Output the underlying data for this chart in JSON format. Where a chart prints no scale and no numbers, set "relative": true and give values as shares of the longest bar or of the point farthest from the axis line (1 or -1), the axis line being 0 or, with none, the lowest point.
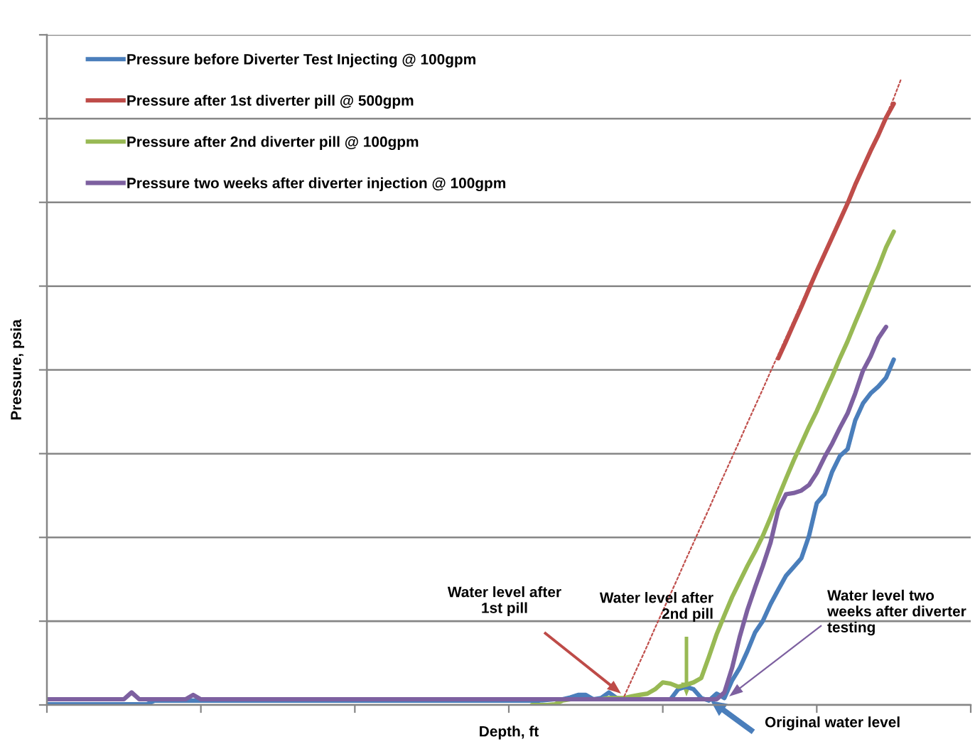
{
  "chart_data": {
    "type": "line",
    "relative": true,
    "xlabel": "Depth, ft",
    "ylabel": "Pressure, psia",
    "grid": "y",
    "legend": "top left",
    "categories": [
      null,
      null,
      null,
      null,
      null,
      null,
      null,
      null,
      null,
      null,
      null,
      null,
      null,
      null,
      null,
      null,
      null,
      null,
      null,
      null,
      null,
      null,
      null,
      null,
      null,
      null,
      null,
      null,
      null,
      null,
      null,
      null,
      null,
      null,
      null,
      null,
      null,
      null,
      null,
      null,
      null,
      null,
      null,
      null,
      null,
      null,
      null,
      null,
      null,
      null,
      null,
      null,
      null,
      null,
      null,
      null,
      null,
      null,
      null,
      null,
      null,
      null,
      null,
      null,
      null,
      null,
      null,
      null,
      null,
      null,
      null,
      null,
      null,
      null,
      null,
      null,
      null,
      null,
      null,
      null,
      null,
      null,
      null,
      null,
      null,
      null,
      null,
      null,
      null,
      null,
      null,
      null,
      null,
      null,
      null,
      null,
      null,
      null,
      null,
      null,
      null,
      null,
      null,
      null,
      null,
      null,
      null,
      null,
      null,
      null,
      null,
      null,
      null,
      null,
      null,
      null,
      null,
      null,
      null,
      null,
      null
    ],
    "series": [
      {
        "name": "Pressure before Diverter Test Injecting @ 100gpm",
        "color": "#4a7ebb",
        "values": [
          0.001,
          0.001,
          0.001,
          0.001,
          0.001,
          0.001,
          0.001,
          0.001,
          0.001,
          0.001,
          0.001,
          0.001,
          0.001,
          0.001,
          0.007,
          0.007,
          0.007,
          0.007,
          0.007,
          0.007,
          0.007,
          0.007,
          0.007,
          0.007,
          0.007,
          0.007,
          0.007,
          0.007,
          0.007,
          0.007,
          0.007,
          0.007,
          0.007,
          0.007,
          0.007,
          0.007,
          0.007,
          0.007,
          0.007,
          0.007,
          0.007,
          0.007,
          0.007,
          0.007,
          0.007,
          0.007,
          0.007,
          0.007,
          0.007,
          0.007,
          0.007,
          0.007,
          0.007,
          0.007,
          0.007,
          0.007,
          0.007,
          0.007,
          0.007,
          0.007,
          0.007,
          0.007,
          0.007,
          0.007,
          0.007,
          0.008,
          0.009,
          0.009,
          0.012,
          0.016,
          0.016,
          0.009,
          0.011,
          0.02,
          0.011,
          0.009,
          0.009,
          0.009,
          0.009,
          0.009,
          0.009,
          0.009,
          0.025,
          0.029,
          0.025,
          0.011,
          0.007,
          0.018,
          0.011,
          0.039,
          0.059,
          0.086,
          0.116,
          0.134,
          0.161,
          0.184,
          0.206,
          0.22,
          0.234,
          0.27,
          0.322,
          0.336,
          0.372,
          0.397,
          0.408,
          0.454,
          0.481,
          0.497,
          0.508,
          0.522,
          0.551,
          null,
          null,
          null,
          null,
          null,
          null,
          null,
          null,
          null,
          null
        ]
      },
      {
        "name": "Pressure after 1st diverter pill @ 500gpm",
        "color": "#be4b48",
        "values": [
          null,
          null,
          null,
          null,
          null,
          null,
          null,
          null,
          null,
          null,
          null,
          null,
          null,
          null,
          null,
          null,
          null,
          null,
          null,
          null,
          null,
          null,
          null,
          null,
          null,
          null,
          null,
          null,
          null,
          null,
          null,
          null,
          null,
          null,
          null,
          null,
          null,
          null,
          null,
          null,
          null,
          null,
          null,
          null,
          null,
          null,
          null,
          null,
          null,
          null,
          null,
          null,
          null,
          null,
          null,
          null,
          null,
          null,
          null,
          null,
          null,
          null,
          null,
          null,
          null,
          null,
          null,
          null,
          null,
          null,
          null,
          null,
          null,
          null,
          null,
          null,
          null,
          null,
          null,
          null,
          null,
          null,
          null,
          null,
          null,
          null,
          null,
          null,
          null,
          null,
          null,
          null,
          null,
          null,
          null,
          0.553,
          0.58,
          0.608,
          0.635,
          0.664,
          0.692,
          0.719,
          0.746,
          0.773,
          0.8,
          0.83,
          0.857,
          0.884,
          0.909,
          0.937,
          0.959,
          null,
          null,
          null,
          null,
          null,
          null,
          null,
          null,
          null,
          null
        ]
      },
      {
        "name": "Pressure after 2nd diverter pill @ 100gpm",
        "color": "#98b954",
        "values": [
          null,
          null,
          null,
          null,
          null,
          null,
          null,
          null,
          null,
          null,
          null,
          null,
          null,
          null,
          null,
          null,
          null,
          null,
          null,
          null,
          null,
          null,
          null,
          null,
          null,
          null,
          null,
          null,
          null,
          null,
          null,
          null,
          null,
          null,
          null,
          null,
          null,
          null,
          null,
          null,
          null,
          null,
          null,
          null,
          null,
          null,
          null,
          null,
          null,
          null,
          null,
          null,
          null,
          null,
          null,
          null,
          null,
          null,
          null,
          null,
          null,
          null,
          null,
          0,
          0,
          0,
          0.001,
          0.007,
          0.009,
          0.009,
          0.009,
          0.009,
          0.009,
          0.011,
          0.011,
          0.011,
          0.014,
          0.016,
          0.018,
          0.025,
          0.036,
          0.034,
          0.029,
          0.032,
          0.036,
          0.043,
          0.077,
          0.113,
          0.143,
          0.172,
          0.197,
          0.222,
          0.245,
          0.27,
          0.299,
          0.331,
          0.361,
          0.39,
          0.417,
          0.444,
          0.469,
          0.497,
          0.524,
          0.553,
          0.58,
          0.61,
          0.639,
          0.669,
          0.698,
          0.73,
          0.755,
          null,
          null,
          null,
          null,
          null,
          null,
          null,
          null,
          null,
          null
        ]
      },
      {
        "name": "Pressure two weeks after diverter injection @ 100gpm",
        "color": "#7d60a0",
        "values": [
          0.009,
          0.009,
          0.009,
          0.009,
          0.009,
          0.009,
          0.009,
          0.009,
          0.009,
          0.009,
          0.009,
          0.02,
          0.009,
          0.009,
          0.009,
          0.009,
          0.009,
          0.009,
          0.009,
          0.016,
          0.009,
          0.009,
          0.009,
          0.009,
          0.009,
          0.009,
          0.009,
          0.009,
          0.009,
          0.009,
          0.009,
          0.009,
          0.009,
          0.009,
          0.009,
          0.009,
          0.009,
          0.009,
          0.009,
          0.009,
          0.009,
          0.009,
          0.009,
          0.009,
          0.009,
          0.009,
          0.009,
          0.009,
          0.009,
          0.009,
          0.009,
          0.009,
          0.009,
          0.009,
          0.009,
          0.009,
          0.009,
          0.009,
          0.009,
          0.009,
          0.009,
          0.009,
          0.009,
          0.009,
          0.009,
          0.009,
          0.009,
          0.009,
          0.009,
          0.009,
          0.009,
          0.009,
          0.009,
          0.009,
          0.009,
          0.009,
          0.009,
          0.009,
          0.009,
          0.009,
          0.009,
          0.009,
          0.009,
          0.009,
          0.009,
          0.009,
          0.009,
          0.009,
          0.02,
          0.059,
          0.109,
          0.152,
          0.188,
          0.222,
          0.259,
          0.311,
          0.336,
          0.338,
          0.342,
          0.351,
          0.37,
          0.395,
          0.417,
          0.442,
          0.465,
          0.497,
          0.533,
          0.556,
          0.585,
          0.603,
          null,
          null,
          null,
          null,
          null,
          null,
          null,
          null,
          null,
          null,
          null
        ]
      },
      {
        "color": "#c0504d",
        "line_style": "dotted",
        "values": [
          null,
          null,
          null,
          null,
          null,
          null,
          null,
          null,
          null,
          null,
          null,
          null,
          null,
          null,
          null,
          null,
          null,
          null,
          null,
          null,
          null,
          null,
          null,
          null,
          null,
          null,
          null,
          null,
          null,
          null,
          null,
          null,
          null,
          null,
          null,
          null,
          null,
          null,
          null,
          null,
          null,
          null,
          null,
          null,
          null,
          null,
          null,
          null,
          null,
          null,
          null,
          null,
          null,
          null,
          null,
          null,
          null,
          null,
          null,
          null,
          null,
          null,
          null,
          null,
          null,
          null,
          null,
          null,
          null,
          null,
          null,
          null,
          null,
          null,
          null,
          0.014,
          0.041,
          0.068,
          0.095,
          0.123,
          0.15,
          0.177,
          0.204,
          0.232,
          0.259,
          0.286,
          0.313,
          0.341,
          0.368,
          0.395,
          0.422,
          0.45,
          0.477,
          0.504,
          0.532,
          0.559,
          0.586,
          0.613,
          0.641,
          0.668,
          0.695,
          0.722,
          0.75,
          0.777,
          0.804,
          0.831,
          0.859,
          0.886,
          0.913,
          0.94,
          0.968,
          1.0,
          null,
          null,
          null,
          null,
          null,
          null,
          null,
          null,
          null
        ]
      }
    ],
    "annotations": [
      "Water level after\n1st pill",
      "Water level after\n2nd pill",
      "Water level two\nweeks after diverter\ntesting",
      "Original water level"
    ]
  }
}
